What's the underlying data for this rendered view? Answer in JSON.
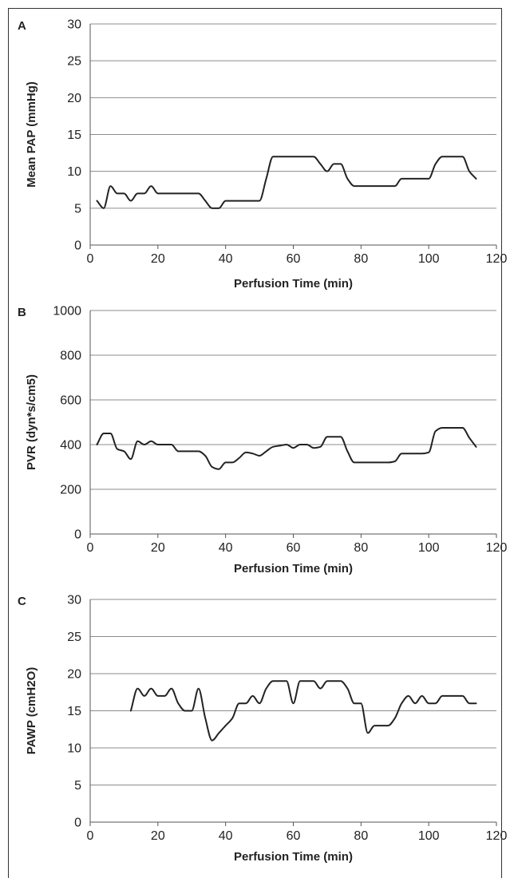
{
  "chart_data": [
    {
      "panel": "A",
      "type": "line",
      "xlabel": "Perfusion Time (min)",
      "ylabel": "Mean PAP (mmHg)",
      "xlim": [
        0,
        120
      ],
      "ylim": [
        0,
        30
      ],
      "xticks": [
        0,
        20,
        40,
        60,
        80,
        100,
        120
      ],
      "yticks": [
        0,
        5,
        10,
        15,
        20,
        25,
        30
      ],
      "grid": "horizontal",
      "series": [
        {
          "color": "#222222",
          "x": [
            2,
            4,
            6,
            8,
            10,
            12,
            14,
            16,
            18,
            20,
            22,
            24,
            26,
            28,
            30,
            32,
            34,
            36,
            38,
            40,
            42,
            44,
            46,
            48,
            50,
            52,
            54,
            56,
            58,
            60,
            62,
            64,
            66,
            68,
            70,
            72,
            74,
            76,
            78,
            80,
            82,
            84,
            86,
            88,
            90,
            92,
            94,
            96,
            98,
            100,
            102,
            104,
            106,
            108,
            110,
            112,
            114
          ],
          "y": [
            6,
            5,
            8,
            7,
            7,
            6,
            7,
            7,
            8,
            7,
            7,
            7,
            7,
            7,
            7,
            7,
            6,
            5,
            5,
            6,
            6,
            6,
            6,
            6,
            6,
            9,
            12,
            12,
            12,
            12,
            12,
            12,
            12,
            11,
            10,
            11,
            11,
            9,
            8,
            8,
            8,
            8,
            8,
            8,
            8,
            9,
            9,
            9,
            9,
            9,
            11,
            12,
            12,
            12,
            12,
            10,
            9
          ]
        }
      ]
    },
    {
      "panel": "B",
      "type": "line",
      "xlabel": "Perfusion Time (min)",
      "ylabel": "PVR (dyn*s/cm5)",
      "xlim": [
        0,
        120
      ],
      "ylim": [
        0,
        1000
      ],
      "xticks": [
        0,
        20,
        40,
        60,
        80,
        100,
        120
      ],
      "yticks": [
        0,
        200,
        400,
        600,
        800,
        1000
      ],
      "grid": "horizontal",
      "series": [
        {
          "color": "#222222",
          "x": [
            2,
            4,
            6,
            8,
            10,
            12,
            14,
            16,
            18,
            20,
            22,
            24,
            26,
            28,
            30,
            32,
            34,
            36,
            38,
            40,
            42,
            44,
            46,
            48,
            50,
            52,
            54,
            56,
            58,
            60,
            62,
            64,
            66,
            68,
            70,
            72,
            74,
            76,
            78,
            80,
            82,
            84,
            86,
            88,
            90,
            92,
            94,
            96,
            98,
            100,
            102,
            104,
            106,
            108,
            110,
            112,
            114
          ],
          "y": [
            400,
            450,
            450,
            380,
            370,
            335,
            415,
            400,
            415,
            400,
            400,
            400,
            370,
            370,
            370,
            370,
            350,
            300,
            290,
            320,
            320,
            340,
            365,
            360,
            350,
            370,
            390,
            395,
            400,
            385,
            400,
            400,
            385,
            390,
            435,
            435,
            435,
            370,
            320,
            320,
            320,
            320,
            320,
            320,
            325,
            360,
            360,
            360,
            360,
            365,
            460,
            475,
            475,
            475,
            475,
            430,
            390
          ]
        }
      ]
    },
    {
      "panel": "C",
      "type": "line",
      "xlabel": "Perfusion Time (min)",
      "ylabel": "PAWP (cmH2O)",
      "xlim": [
        0,
        120
      ],
      "ylim": [
        0,
        30
      ],
      "xticks": [
        0,
        20,
        40,
        60,
        80,
        100,
        120
      ],
      "yticks": [
        0,
        5,
        10,
        15,
        20,
        25,
        30
      ],
      "grid": "horizontal",
      "series": [
        {
          "color": "#222222",
          "x": [
            12,
            14,
            16,
            18,
            20,
            22,
            24,
            26,
            28,
            30,
            32,
            34,
            36,
            38,
            40,
            42,
            44,
            46,
            48,
            50,
            52,
            54,
            56,
            58,
            60,
            62,
            64,
            66,
            68,
            70,
            72,
            74,
            76,
            78,
            80,
            82,
            84,
            86,
            88,
            90,
            92,
            94,
            96,
            98,
            100,
            102,
            104,
            106,
            108,
            110,
            112,
            114
          ],
          "y": [
            15,
            18,
            17,
            18,
            17,
            17,
            18,
            16,
            15,
            15,
            18,
            14,
            11,
            12,
            13,
            14,
            16,
            16,
            17,
            16,
            18,
            19,
            19,
            19,
            16,
            19,
            19,
            19,
            18,
            19,
            19,
            19,
            18,
            16,
            16,
            12,
            13,
            13,
            13,
            14,
            16,
            17,
            16,
            17,
            16,
            16,
            17,
            17,
            17,
            17,
            16,
            16
          ]
        }
      ]
    }
  ]
}
